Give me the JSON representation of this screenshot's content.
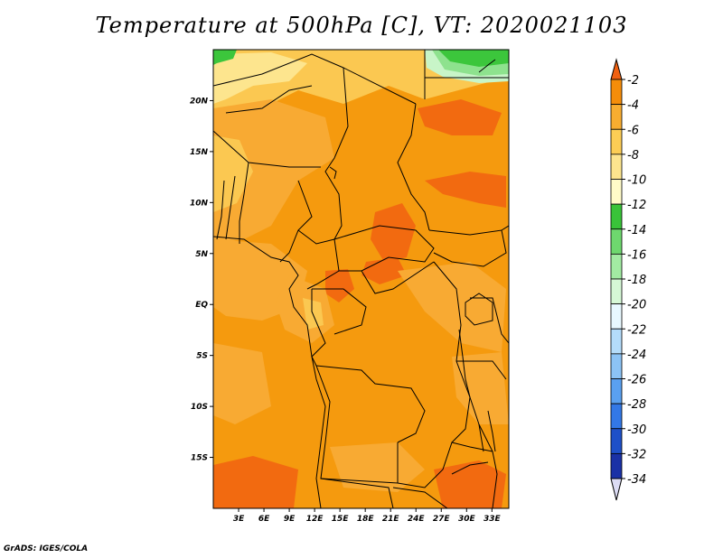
{
  "title": "Temperature at 500hPa [C], VT: 2020021103",
  "credit": "GrADS: IGES/COLA",
  "map": {
    "lon_range": [
      0,
      35
    ],
    "lat_range": [
      -20,
      25
    ],
    "lat_ticks": [
      {
        "value": 20,
        "label": "20N"
      },
      {
        "value": 15,
        "label": "15N"
      },
      {
        "value": 10,
        "label": "10N"
      },
      {
        "value": 5,
        "label": "5N"
      },
      {
        "value": 0,
        "label": "EQ"
      },
      {
        "value": -5,
        "label": "5S"
      },
      {
        "value": -10,
        "label": "10S"
      },
      {
        "value": -15,
        "label": "15S"
      }
    ],
    "lon_ticks": [
      {
        "value": 3,
        "label": "3E"
      },
      {
        "value": 6,
        "label": "6E"
      },
      {
        "value": 9,
        "label": "9E"
      },
      {
        "value": 12,
        "label": "12E"
      },
      {
        "value": 15,
        "label": "15E"
      },
      {
        "value": 18,
        "label": "18E"
      },
      {
        "value": 21,
        "label": "21E"
      },
      {
        "value": 24,
        "label": "24E"
      },
      {
        "value": 27,
        "label": "27E"
      },
      {
        "value": 30,
        "label": "30E"
      },
      {
        "value": 33,
        "label": "33E"
      }
    ],
    "colors": {
      "lt_minus8": "#fbc851",
      "lt_minus6": "#f8aa33",
      "lt_minus4": "#f59a0e",
      "lt_minus2": "#f26a10",
      "lt_minus12": "#fde58e",
      "lt_minus10": "#fff0a6",
      "green_a": "#3cc63c",
      "green_b": "#8ee28e",
      "green_c": "#c8f5c8",
      "border": "#000000"
    }
  },
  "colorbar": {
    "labels": [
      "-2",
      "-4",
      "-6",
      "-8",
      "-10",
      "-12",
      "-14",
      "-16",
      "-18",
      "-20",
      "-22",
      "-24",
      "-26",
      "-28",
      "-30",
      "-32",
      "-34"
    ],
    "colors": [
      "#f06010",
      "#f58d0a",
      "#f8ad30",
      "#fccd55",
      "#fde58e",
      "#fffbc8",
      "#39c339",
      "#6ed86e",
      "#a2eba2",
      "#d6f8d6",
      "#e8f8ff",
      "#b4dcfa",
      "#8cc3f5",
      "#5aa0f0",
      "#3378e6",
      "#1e50c8",
      "#1a31a6",
      "#0c1970",
      "#dcdcf5"
    ]
  }
}
